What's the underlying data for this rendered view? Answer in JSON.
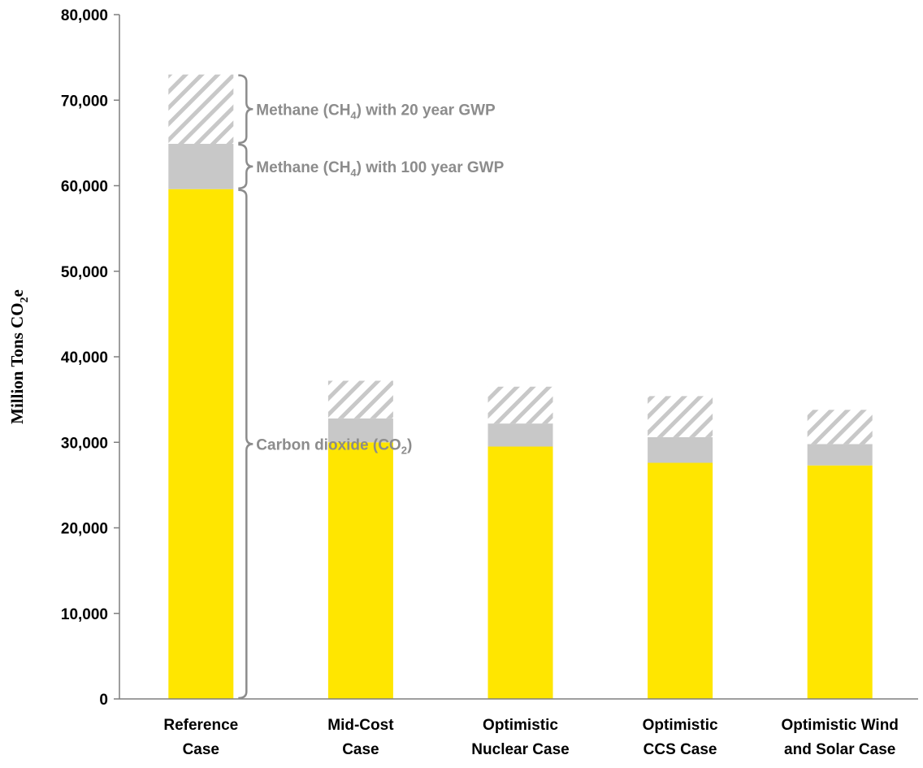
{
  "chart_data": {
    "type": "bar",
    "stacked": true,
    "title": "",
    "xlabel": "",
    "ylabel": {
      "prefix": "Million Tons CO",
      "sub": "2",
      "suffix": "e"
    },
    "ylim": [
      0,
      80000
    ],
    "yticks": [
      0,
      10000,
      20000,
      30000,
      40000,
      50000,
      60000,
      70000,
      80000
    ],
    "ytick_labels": [
      "0",
      "10,000",
      "20,000",
      "30,000",
      "40,000",
      "50,000",
      "60,000",
      "70,000",
      "80,000"
    ],
    "grid": false,
    "legend": "none",
    "categories": [
      [
        "Reference",
        "Case"
      ],
      [
        "Mid-Cost",
        "Case"
      ],
      [
        "Optimistic",
        "Nuclear Case"
      ],
      [
        "Optimistic",
        "CCS Case"
      ],
      [
        "Optimistic Wind",
        "and Solar Case"
      ]
    ],
    "series": [
      {
        "key": "co2",
        "values": [
          59600,
          30000,
          29500,
          27600,
          27300
        ],
        "color": "#ffe600",
        "pattern": "solid"
      },
      {
        "key": "ch4_100",
        "values": [
          5300,
          2800,
          2700,
          3000,
          2500
        ],
        "color": "#c8c8c8",
        "pattern": "solid"
      },
      {
        "key": "ch4_20",
        "values": [
          8100,
          4400,
          4300,
          4800,
          4000
        ],
        "color": "#c8c8c8",
        "pattern": "diagonal-hatch"
      }
    ],
    "annotations": [
      {
        "key": "ch4_20",
        "parts": [
          "Methane (CH",
          "4",
          ") with 20 year GWP"
        ]
      },
      {
        "key": "ch4_100",
        "parts": [
          "Methane (CH",
          "4",
          ") with 100 year GWP"
        ]
      },
      {
        "key": "co2",
        "parts": [
          "Carbon dioxide (CO",
          "2",
          ")"
        ]
      }
    ],
    "annotation_color": "#8c8c8c"
  }
}
